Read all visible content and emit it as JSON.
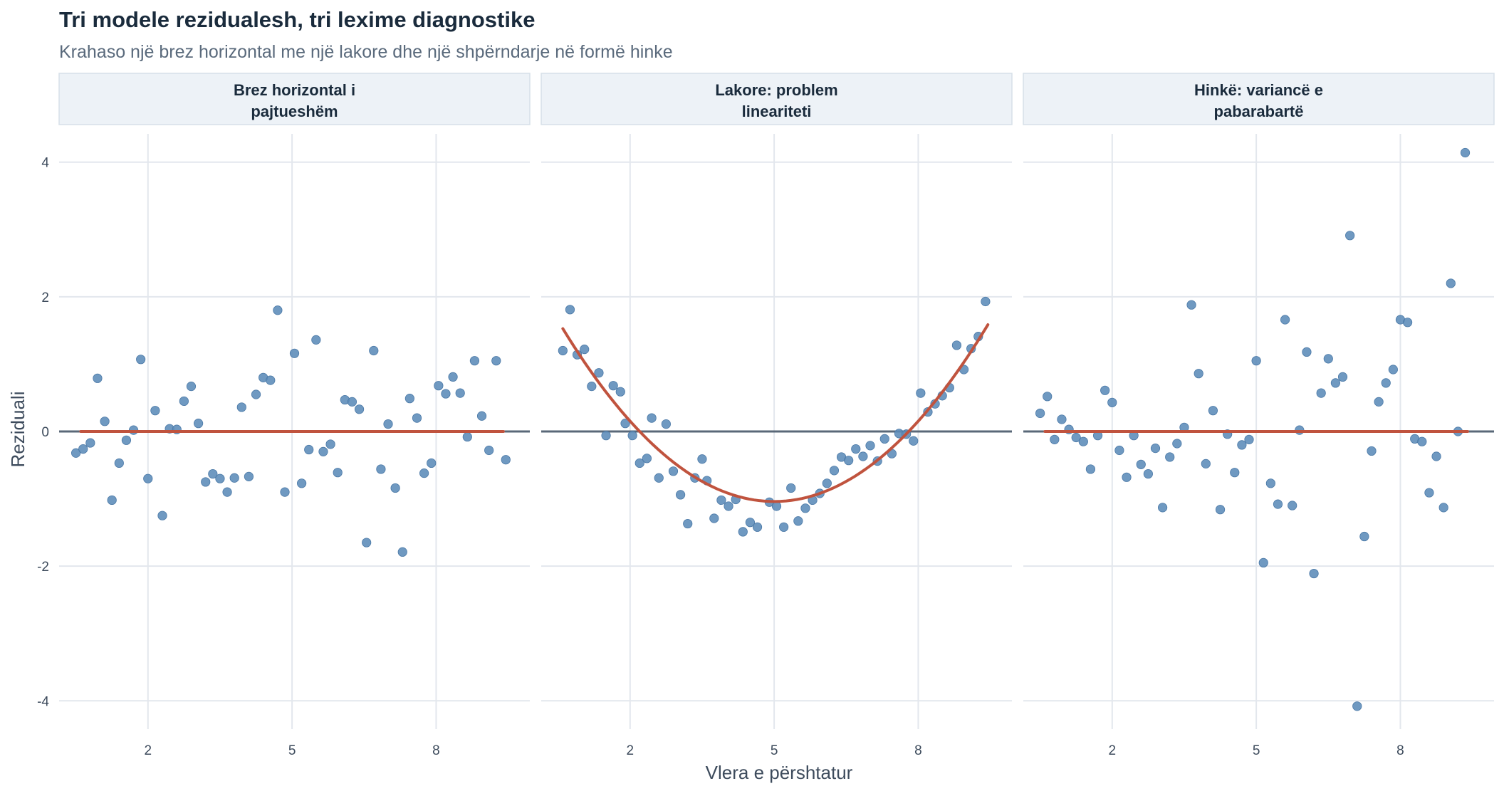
{
  "chart_data": {
    "type": "scatter",
    "title": "Tri modele rezidualesh, tri lexime diagnostike",
    "subtitle": "Krahaso një brez horizontal me një lakore dhe një shpërndarje në formë hinke",
    "xlabel": "Vlera e përshtatur",
    "ylabel": "Reziduali",
    "xlim": [
      0.15,
      9.95
    ],
    "ylim": [
      -4.42,
      4.42
    ],
    "x_ticks": [
      2,
      5,
      8
    ],
    "y_ticks": [
      4,
      2,
      0,
      -2,
      -4
    ],
    "y_tick_labels": [
      "4",
      "2",
      "0",
      "-2",
      "-4"
    ],
    "grid": true,
    "legend": "none",
    "colors": {
      "point": "#5b8bb8",
      "fit_line": "#c0533e",
      "zero_line": "#5a6878",
      "grid": "#e3e7ed",
      "strip_fill": "#edf2f7",
      "strip_border": "#d7e0e8",
      "title": "#1a2b3c",
      "subtitle": "#5a6a7c",
      "axis_text": "#3d4b5c"
    },
    "panels": [
      {
        "label_line1": "Brez horizontal i",
        "label_line2": "pajtueshëm",
        "fit": {
          "kind": "flat",
          "x_range": [
            0.6,
            9.4
          ],
          "y": 0
        },
        "points": [
          [
            0.5,
            -0.32
          ],
          [
            0.65,
            -0.26
          ],
          [
            0.8,
            -0.17
          ],
          [
            0.95,
            0.79
          ],
          [
            1.1,
            0.15
          ],
          [
            1.25,
            -1.02
          ],
          [
            1.4,
            -0.47
          ],
          [
            1.55,
            -0.13
          ],
          [
            1.7,
            0.02
          ],
          [
            1.85,
            1.07
          ],
          [
            2.0,
            -0.7
          ],
          [
            2.15,
            0.31
          ],
          [
            2.3,
            -1.25
          ],
          [
            2.45,
            0.04
          ],
          [
            2.6,
            0.03
          ],
          [
            2.75,
            0.45
          ],
          [
            2.9,
            0.67
          ],
          [
            3.05,
            0.12
          ],
          [
            3.2,
            -0.75
          ],
          [
            3.35,
            -0.63
          ],
          [
            3.5,
            -0.7
          ],
          [
            3.65,
            -0.9
          ],
          [
            3.8,
            -0.69
          ],
          [
            3.95,
            0.36
          ],
          [
            4.1,
            -0.67
          ],
          [
            4.25,
            0.55
          ],
          [
            4.4,
            0.8
          ],
          [
            4.55,
            0.76
          ],
          [
            4.7,
            1.8
          ],
          [
            4.85,
            -0.9
          ],
          [
            5.05,
            1.16
          ],
          [
            5.2,
            -0.77
          ],
          [
            5.35,
            -0.27
          ],
          [
            5.5,
            1.36
          ],
          [
            5.65,
            -0.3
          ],
          [
            5.8,
            -0.19
          ],
          [
            5.95,
            -0.61
          ],
          [
            6.1,
            0.47
          ],
          [
            6.25,
            0.44
          ],
          [
            6.4,
            0.33
          ],
          [
            6.55,
            -1.65
          ],
          [
            6.7,
            1.2
          ],
          [
            6.85,
            -0.56
          ],
          [
            7.0,
            0.11
          ],
          [
            7.15,
            -0.84
          ],
          [
            7.3,
            -1.79
          ],
          [
            7.45,
            0.49
          ],
          [
            7.6,
            0.2
          ],
          [
            7.75,
            -0.62
          ],
          [
            7.9,
            -0.47
          ],
          [
            8.05,
            0.68
          ],
          [
            8.2,
            0.56
          ],
          [
            8.35,
            0.81
          ],
          [
            8.5,
            0.57
          ],
          [
            8.65,
            -0.08
          ],
          [
            8.8,
            1.05
          ],
          [
            8.95,
            0.23
          ],
          [
            9.1,
            -0.28
          ],
          [
            9.25,
            1.05
          ],
          [
            9.45,
            -0.42
          ]
        ]
      },
      {
        "label_line1": "Lakore: problem",
        "label_line2": "lineariteti",
        "fit": {
          "kind": "quadratic",
          "x_range": [
            0.6,
            9.45
          ],
          "vertex_x": 5.0,
          "vertex_y": -1.04,
          "a": 0.1326
        },
        "points": [
          [
            0.6,
            1.2
          ],
          [
            0.75,
            1.81
          ],
          [
            0.9,
            1.14
          ],
          [
            1.05,
            1.22
          ],
          [
            1.2,
            0.67
          ],
          [
            1.35,
            0.87
          ],
          [
            1.5,
            -0.06
          ],
          [
            1.65,
            0.68
          ],
          [
            1.8,
            0.59
          ],
          [
            1.9,
            0.12
          ],
          [
            2.05,
            -0.06
          ],
          [
            2.2,
            -0.47
          ],
          [
            2.35,
            -0.4
          ],
          [
            2.45,
            0.2
          ],
          [
            2.6,
            -0.69
          ],
          [
            2.75,
            0.11
          ],
          [
            2.9,
            -0.59
          ],
          [
            3.05,
            -0.94
          ],
          [
            3.2,
            -1.37
          ],
          [
            3.35,
            -0.69
          ],
          [
            3.5,
            -0.41
          ],
          [
            3.6,
            -0.73
          ],
          [
            3.75,
            -1.29
          ],
          [
            3.9,
            -1.02
          ],
          [
            4.05,
            -1.11
          ],
          [
            4.2,
            -1.01
          ],
          [
            4.35,
            -1.49
          ],
          [
            4.5,
            -1.35
          ],
          [
            4.65,
            -1.42
          ],
          [
            4.9,
            -1.05
          ],
          [
            5.05,
            -1.11
          ],
          [
            5.2,
            -1.42
          ],
          [
            5.35,
            -0.84
          ],
          [
            5.5,
            -1.33
          ],
          [
            5.65,
            -1.14
          ],
          [
            5.8,
            -1.02
          ],
          [
            5.95,
            -0.92
          ],
          [
            6.1,
            -0.77
          ],
          [
            6.25,
            -0.58
          ],
          [
            6.4,
            -0.38
          ],
          [
            6.55,
            -0.43
          ],
          [
            6.7,
            -0.26
          ],
          [
            6.85,
            -0.37
          ],
          [
            7.0,
            -0.21
          ],
          [
            7.15,
            -0.44
          ],
          [
            7.3,
            -0.11
          ],
          [
            7.45,
            -0.33
          ],
          [
            7.6,
            -0.03
          ],
          [
            7.75,
            -0.04
          ],
          [
            7.9,
            -0.14
          ],
          [
            8.05,
            0.57
          ],
          [
            8.2,
            0.29
          ],
          [
            8.35,
            0.41
          ],
          [
            8.5,
            0.53
          ],
          [
            8.65,
            0.65
          ],
          [
            8.8,
            1.28
          ],
          [
            8.95,
            0.92
          ],
          [
            9.1,
            1.23
          ],
          [
            9.25,
            1.41
          ],
          [
            9.4,
            1.93
          ]
        ]
      },
      {
        "label_line1": "Hinkë: variancë e",
        "label_line2": "pabarabartë",
        "fit": {
          "kind": "flat",
          "x_range": [
            0.6,
            9.4
          ],
          "y": 0
        },
        "points": [
          [
            0.5,
            0.27
          ],
          [
            0.65,
            0.52
          ],
          [
            0.8,
            -0.12
          ],
          [
            0.95,
            0.18
          ],
          [
            1.1,
            0.03
          ],
          [
            1.25,
            -0.09
          ],
          [
            1.4,
            -0.15
          ],
          [
            1.55,
            -0.56
          ],
          [
            1.7,
            -0.06
          ],
          [
            1.85,
            0.61
          ],
          [
            2.0,
            0.43
          ],
          [
            2.15,
            -0.28
          ],
          [
            2.3,
            -0.68
          ],
          [
            2.45,
            -0.06
          ],
          [
            2.6,
            -0.49
          ],
          [
            2.75,
            -0.63
          ],
          [
            2.9,
            -0.25
          ],
          [
            3.05,
            -1.13
          ],
          [
            3.2,
            -0.38
          ],
          [
            3.35,
            -0.18
          ],
          [
            3.5,
            0.06
          ],
          [
            3.65,
            1.88
          ],
          [
            3.8,
            0.86
          ],
          [
            3.95,
            -0.48
          ],
          [
            4.1,
            0.31
          ],
          [
            4.25,
            -1.16
          ],
          [
            4.4,
            -0.04
          ],
          [
            4.55,
            -0.61
          ],
          [
            4.7,
            -0.2
          ],
          [
            4.85,
            -0.12
          ],
          [
            5.0,
            1.05
          ],
          [
            5.15,
            -1.95
          ],
          [
            5.3,
            -0.77
          ],
          [
            5.45,
            -1.08
          ],
          [
            5.6,
            1.66
          ],
          [
            5.75,
            -1.1
          ],
          [
            5.9,
            0.02
          ],
          [
            6.05,
            1.18
          ],
          [
            6.2,
            -2.11
          ],
          [
            6.35,
            0.57
          ],
          [
            6.5,
            1.08
          ],
          [
            6.65,
            0.72
          ],
          [
            6.8,
            0.81
          ],
          [
            6.95,
            2.91
          ],
          [
            7.1,
            -4.08
          ],
          [
            7.25,
            -1.56
          ],
          [
            7.4,
            -0.29
          ],
          [
            7.55,
            0.44
          ],
          [
            7.7,
            0.72
          ],
          [
            7.85,
            0.92
          ],
          [
            8.0,
            1.66
          ],
          [
            8.15,
            1.62
          ],
          [
            8.3,
            -0.11
          ],
          [
            8.45,
            -0.15
          ],
          [
            8.6,
            -0.91
          ],
          [
            8.75,
            -0.37
          ],
          [
            8.9,
            -1.13
          ],
          [
            9.05,
            2.2
          ],
          [
            9.2,
            0.0
          ],
          [
            9.35,
            4.14
          ]
        ]
      }
    ]
  }
}
